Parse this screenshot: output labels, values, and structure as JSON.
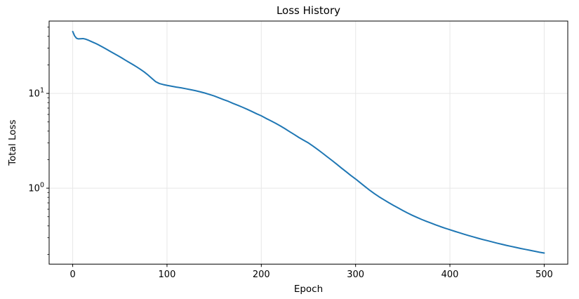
{
  "chart_data": {
    "type": "line",
    "title": "Loss History",
    "xlabel": "Epoch",
    "ylabel": "Total Loss",
    "xscale": "linear",
    "yscale": "log",
    "xlim": [
      -25,
      525
    ],
    "ylim": [
      0.158,
      58
    ],
    "grid": {
      "which": "major",
      "color": "#e7e7e7"
    },
    "legend": "none",
    "axis_color": "#000000",
    "background_color": "#ffffff",
    "x_ticks": [
      {
        "value": 0,
        "label": "0"
      },
      {
        "value": 100,
        "label": "100"
      },
      {
        "value": 200,
        "label": "200"
      },
      {
        "value": 300,
        "label": "300"
      },
      {
        "value": 400,
        "label": "400"
      },
      {
        "value": 500,
        "label": "500"
      }
    ],
    "y_ticks": [
      {
        "value": 10,
        "base": "10",
        "exponent": "1"
      },
      {
        "value": 1,
        "base": "10",
        "exponent": "0"
      }
    ],
    "series": [
      {
        "name": "Total Loss",
        "color": "#1f77b4",
        "line_width": 2,
        "x": [
          0,
          2,
          4,
          6,
          8,
          11,
          14,
          17,
          20,
          24,
          28,
          32,
          36,
          40,
          44,
          48,
          52,
          56,
          60,
          64,
          68,
          72,
          76,
          80,
          84,
          88,
          92,
          96,
          100,
          105,
          110,
          115,
          120,
          125,
          130,
          135,
          140,
          145,
          150,
          155,
          160,
          165,
          170,
          175,
          180,
          185,
          190,
          195,
          200,
          205,
          210,
          215,
          220,
          225,
          230,
          235,
          240,
          245,
          250,
          255,
          260,
          265,
          270,
          275,
          280,
          285,
          290,
          295,
          300,
          305,
          310,
          315,
          320,
          325,
          330,
          335,
          340,
          345,
          350,
          355,
          360,
          365,
          370,
          375,
          380,
          385,
          390,
          395,
          400,
          405,
          410,
          415,
          420,
          425,
          430,
          435,
          440,
          445,
          450,
          455,
          460,
          465,
          470,
          475,
          480,
          485,
          490,
          495,
          500
        ],
        "y": [
          45,
          40.5,
          38.2,
          37.6,
          37.7,
          37.9,
          37.3,
          36.3,
          35.2,
          33.8,
          32.3,
          30.7,
          29.2,
          27.7,
          26.3,
          25.0,
          23.7,
          22.4,
          21.2,
          20.1,
          19.0,
          17.9,
          16.8,
          15.6,
          14.4,
          13.3,
          12.7,
          12.4,
          12.15,
          11.9,
          11.65,
          11.45,
          11.2,
          10.95,
          10.7,
          10.4,
          10.1,
          9.75,
          9.4,
          9.0,
          8.6,
          8.25,
          7.85,
          7.5,
          7.15,
          6.8,
          6.45,
          6.1,
          5.8,
          5.45,
          5.15,
          4.85,
          4.55,
          4.25,
          3.95,
          3.68,
          3.42,
          3.2,
          3.0,
          2.77,
          2.55,
          2.34,
          2.14,
          1.96,
          1.79,
          1.63,
          1.49,
          1.36,
          1.25,
          1.14,
          1.04,
          0.95,
          0.875,
          0.81,
          0.755,
          0.705,
          0.66,
          0.62,
          0.582,
          0.548,
          0.518,
          0.492,
          0.468,
          0.447,
          0.428,
          0.41,
          0.393,
          0.378,
          0.364,
          0.351,
          0.339,
          0.327,
          0.316,
          0.306,
          0.296,
          0.287,
          0.279,
          0.271,
          0.263,
          0.256,
          0.249,
          0.243,
          0.237,
          0.231,
          0.226,
          0.221,
          0.216,
          0.211,
          0.207
        ]
      }
    ]
  }
}
